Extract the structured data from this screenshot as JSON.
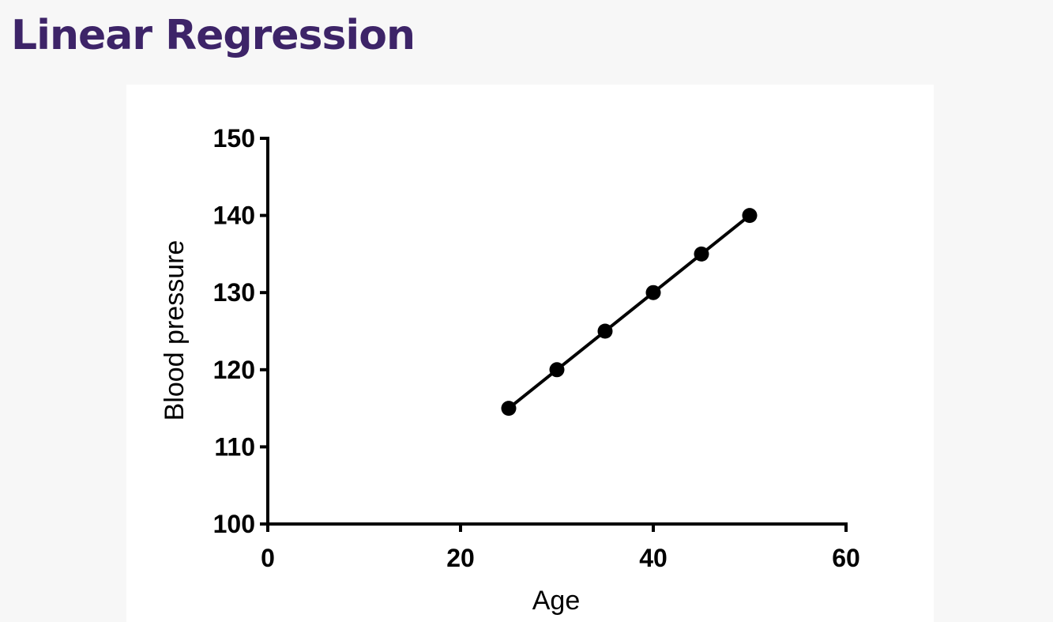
{
  "page": {
    "title": "Linear Regression"
  },
  "colors": {
    "title": "#3d2468",
    "background": "#f7f7f7",
    "panel": "#ffffff",
    "ink": "#000000"
  },
  "chart_data": {
    "type": "scatter",
    "title": "",
    "xlabel": "Age",
    "ylabel": "Blood pressure",
    "xlim": [
      0,
      60
    ],
    "ylim": [
      100,
      150
    ],
    "x_ticks": [
      0,
      20,
      40,
      60
    ],
    "y_ticks": [
      100,
      110,
      120,
      130,
      140,
      150
    ],
    "grid": false,
    "legend": "none",
    "series": [
      {
        "x": [
          25,
          30,
          35,
          40,
          45,
          50
        ],
        "y": [
          115,
          120,
          125,
          130,
          135,
          140
        ]
      }
    ],
    "regression_line": {
      "x": [
        25,
        50
      ],
      "y": [
        115,
        140
      ]
    }
  }
}
